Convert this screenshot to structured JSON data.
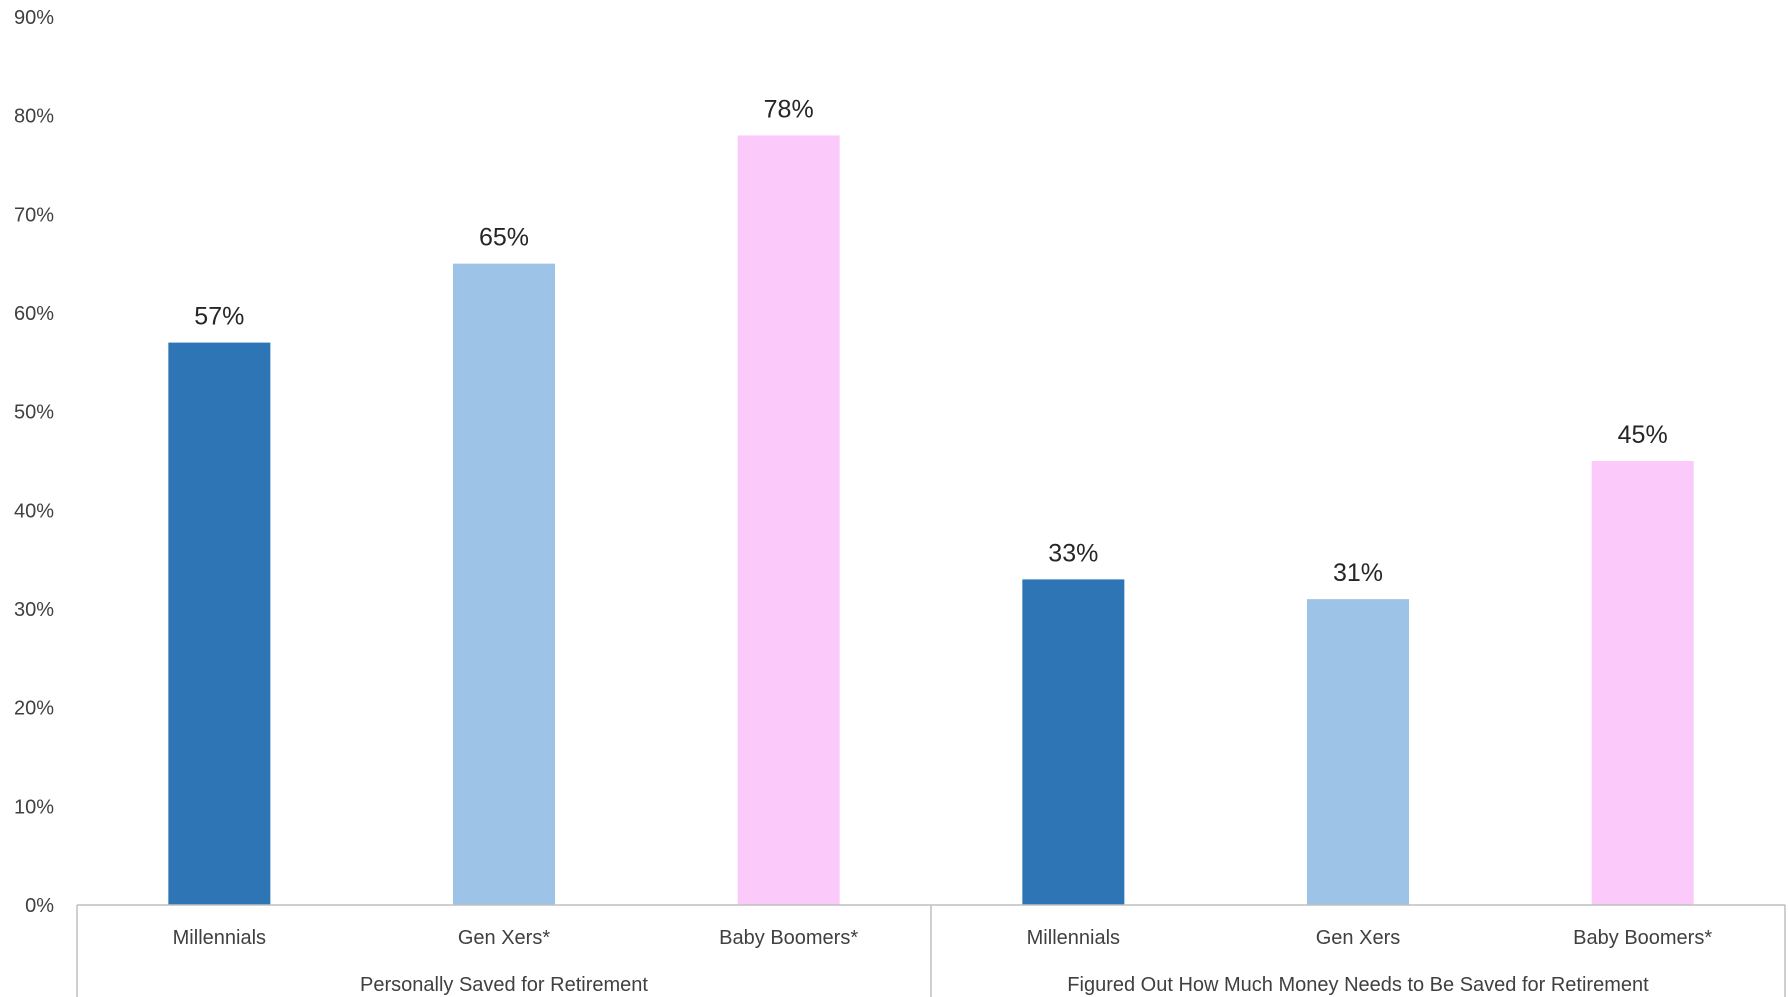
{
  "chart_data": {
    "type": "bar",
    "title": "",
    "xlabel": "",
    "ylabel": "",
    "ylim": [
      0,
      90
    ],
    "y_ticks": [
      "0%",
      "10%",
      "20%",
      "30%",
      "40%",
      "50%",
      "60%",
      "70%",
      "80%",
      "90%"
    ],
    "grid": false,
    "legend": "none",
    "groups": [
      {
        "label": "Personally Saved for Retirement",
        "bars": [
          {
            "category": "Millennials",
            "value": 57,
            "label": "57%",
            "color": "#2E75B6"
          },
          {
            "category": "Gen Xers*",
            "value": 65,
            "label": "65%",
            "color": "#9DC3E6"
          },
          {
            "category": "Baby Boomers*",
            "value": 78,
            "label": "78%",
            "color": "#FBCAFB"
          }
        ]
      },
      {
        "label": "Figured Out How Much Money Needs to Be Saved for Retirement",
        "bars": [
          {
            "category": "Millennials",
            "value": 33,
            "label": "33%",
            "color": "#2E75B6"
          },
          {
            "category": "Gen Xers",
            "value": 31,
            "label": "31%",
            "color": "#9DC3E6"
          },
          {
            "category": "Baby Boomers*",
            "value": 45,
            "label": "45%",
            "color": "#FBCAFB"
          }
        ]
      }
    ]
  }
}
